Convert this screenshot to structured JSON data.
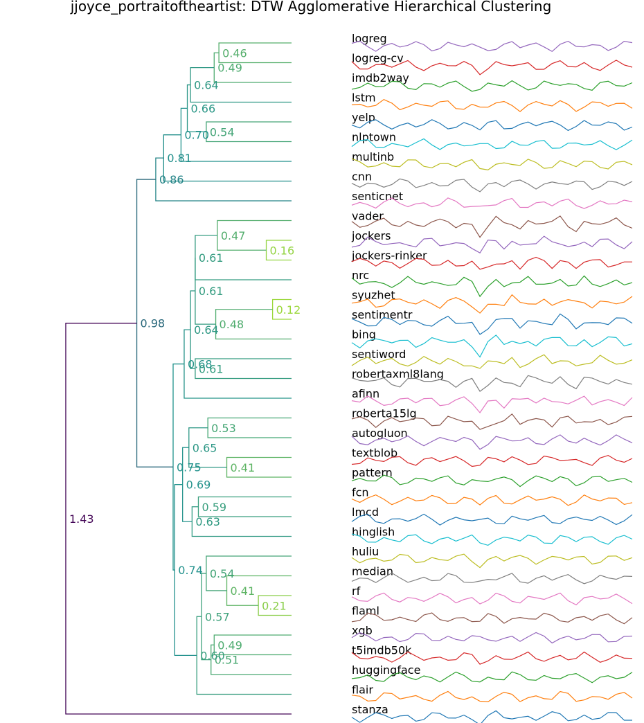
{
  "chart_data": {
    "type": "dendrogram",
    "title": "jjoyce_portraitoftheartist: DTW Agglomerative Hierarchical Clustering",
    "leaves": [
      "logreg",
      "logreg-cv",
      "imdb2way",
      "lstm",
      "yelp",
      "nlptown",
      "multinb",
      "cnn",
      "senticnet",
      "vader",
      "jockers",
      "jockers-rinker",
      "nrc",
      "syuzhet",
      "sentimentr",
      "bing",
      "sentiword",
      "robertaxml8lang",
      "afinn",
      "roberta15lg",
      "autogluon",
      "textblob",
      "pattern",
      "fcn",
      "lmcd",
      "hinglish",
      "huliu",
      "median",
      "rf",
      "flaml",
      "xgb",
      "t5imdb50k",
      "huggingface",
      "flair",
      "stanza"
    ],
    "merges": [
      {
        "height": 0.46,
        "label": "0.46",
        "children": [
          "leaf:0",
          "leaf:1"
        ]
      },
      {
        "height": 0.49,
        "label": "0.49",
        "children": [
          "node:0",
          "leaf:2"
        ]
      },
      {
        "height": 0.64,
        "label": "0.64",
        "children": [
          "node:1",
          "leaf:3"
        ]
      },
      {
        "height": 0.54,
        "label": "0.54",
        "children": [
          "leaf:4",
          "leaf:5"
        ]
      },
      {
        "height": 0.66,
        "label": "0.66",
        "children": [
          "node:2",
          "node:3"
        ]
      },
      {
        "height": 0.7,
        "label": "0.70",
        "children": [
          "node:4",
          "leaf:6"
        ]
      },
      {
        "height": 0.81,
        "label": "0.81",
        "children": [
          "node:5",
          "leaf:7"
        ]
      },
      {
        "height": 0.86,
        "label": "0.86",
        "children": [
          "node:6",
          "leaf:8"
        ]
      },
      {
        "height": 0.16,
        "label": "0.16",
        "children": [
          "leaf:10",
          "leaf:11"
        ]
      },
      {
        "height": 0.47,
        "label": "0.47",
        "children": [
          "leaf:9",
          "node:8"
        ]
      },
      {
        "height": 0.61,
        "label": "0.61",
        "children": [
          "node:9",
          "leaf:12"
        ]
      },
      {
        "height": 0.12,
        "label": "0.12",
        "children": [
          "leaf:13",
          "leaf:14"
        ]
      },
      {
        "height": 0.48,
        "label": "0.48",
        "children": [
          "node:11",
          "leaf:15"
        ]
      },
      {
        "height": 0.61,
        "label": "0.61",
        "children": [
          "node:10",
          "node:12"
        ]
      },
      {
        "height": 0.61,
        "label": "0.61",
        "children": [
          "leaf:16",
          "leaf:17"
        ]
      },
      {
        "height": 0.64,
        "label": "0.64",
        "children": [
          "node:13",
          "node:14"
        ]
      },
      {
        "height": 0.68,
        "label": "0.68",
        "children": [
          "node:15",
          "leaf:18"
        ]
      },
      {
        "height": 0.53,
        "label": "0.53",
        "children": [
          "leaf:19",
          "leaf:20"
        ]
      },
      {
        "height": 0.41,
        "label": "0.41",
        "children": [
          "leaf:21",
          "leaf:22"
        ]
      },
      {
        "height": 0.65,
        "label": "0.65",
        "children": [
          "node:17",
          "node:18"
        ]
      },
      {
        "height": 0.59,
        "label": "0.59",
        "children": [
          "leaf:23",
          "leaf:24"
        ]
      },
      {
        "height": 0.63,
        "label": "0.63",
        "children": [
          "node:20",
          "leaf:25"
        ]
      },
      {
        "height": 0.69,
        "label": "0.69",
        "children": [
          "node:19",
          "node:21"
        ]
      },
      {
        "height": 0.21,
        "label": "0.21",
        "children": [
          "leaf:28",
          "leaf:29"
        ]
      },
      {
        "height": 0.41,
        "label": "0.41",
        "children": [
          "leaf:27",
          "node:23"
        ]
      },
      {
        "height": 0.54,
        "label": "0.54",
        "children": [
          "leaf:26",
          "node:24"
        ]
      },
      {
        "height": 0.49,
        "label": "0.49",
        "children": [
          "leaf:30",
          "leaf:31"
        ]
      },
      {
        "height": 0.51,
        "label": "0.51",
        "children": [
          "node:26",
          "leaf:32"
        ]
      },
      {
        "height": 0.57,
        "label": "0.57",
        "children": [
          "node:25",
          "node:27"
        ]
      },
      {
        "height": 0.6,
        "label": "0.60",
        "children": [
          "leaf:33",
          "node:28"
        ]
      },
      {
        "height": 0.74,
        "label": "0.74",
        "children": [
          "node:22",
          "node:29"
        ]
      },
      {
        "height": 0.75,
        "label": "0.75",
        "children": [
          "node:16",
          "node:30"
        ]
      },
      {
        "height": 0.98,
        "label": "0.98",
        "children": [
          "node:7",
          "node:31"
        ]
      },
      {
        "height": 1.43,
        "label": "1.43",
        "children": [
          "node:32",
          "leaf:34"
        ]
      }
    ],
    "height_color_scale": {
      "low": "#a0da39",
      "mid": "#21918c",
      "high": "#440154"
    },
    "series_colors": [
      "#9467bd",
      "#d62728",
      "#2ca02c",
      "#ff7f0e",
      "#1f77b4",
      "#17becf",
      "#bcbd22",
      "#7f7f7f",
      "#e377c2",
      "#8c564b"
    ],
    "sparkline_shared": [
      0.1,
      -0.1,
      0.2,
      -0.2,
      0.1,
      0.0,
      -0.15,
      0.15,
      -0.1,
      0.1,
      0.0,
      -0.2,
      0.2,
      -0.1,
      0.05,
      -0.3,
      -1.8,
      -0.4,
      0.3,
      -0.3,
      0.4,
      -0.5,
      0.2,
      0.0,
      0.3,
      -0.2,
      0.5,
      -0.1,
      -0.6,
      0.2,
      -0.3,
      0.1,
      0.0,
      0.15,
      -0.15,
      0.1
    ]
  }
}
